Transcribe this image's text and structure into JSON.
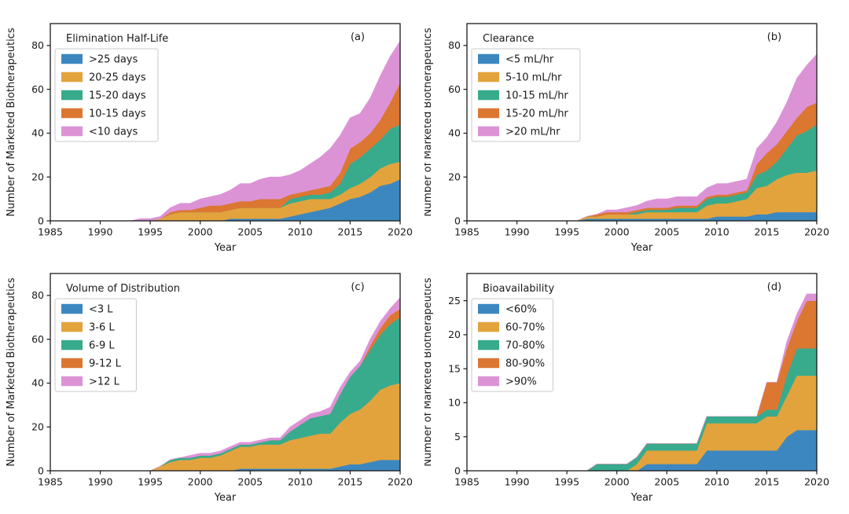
{
  "figure": {
    "background": "#ffffff",
    "text_color": "#1a1a1a",
    "spine_color": "#1a1a1a",
    "legend_border_color": "#c9c9c9",
    "legend_background": "#ffffff"
  },
  "chart_data": [
    {
      "type": "area",
      "stacked": true,
      "panel_label": "(a)",
      "legend_title": "Elimination Half-Life",
      "legend_position": "upper-left",
      "xlabel": "Year",
      "ylabel": "Number of Marketed Biotherapeutics",
      "xlim": [
        1985,
        2020
      ],
      "ylim": [
        0,
        90
      ],
      "x_ticks": [
        1985,
        1990,
        1995,
        2000,
        2005,
        2010,
        2015,
        2020
      ],
      "y_ticks": [
        0,
        20,
        40,
        60,
        80
      ],
      "grid": false,
      "years": [
        1985,
        1986,
        1987,
        1988,
        1989,
        1990,
        1991,
        1992,
        1993,
        1994,
        1995,
        1996,
        1997,
        1998,
        1999,
        2000,
        2001,
        2002,
        2003,
        2004,
        2005,
        2006,
        2007,
        2008,
        2009,
        2010,
        2011,
        2012,
        2013,
        2014,
        2015,
        2016,
        2017,
        2018,
        2019,
        2020
      ],
      "series": [
        {
          "name": ">25 days",
          "color": "#3c87c0",
          "values": [
            0,
            0,
            0,
            0,
            0,
            0,
            0,
            0,
            0,
            0,
            0,
            0,
            0,
            0,
            0,
            0,
            0,
            0,
            1,
            1,
            1,
            1,
            1,
            1,
            2,
            3,
            4,
            5,
            6,
            8,
            10,
            11,
            13,
            16,
            17,
            19
          ]
        },
        {
          "name": "20-25 days",
          "color": "#e2a33d",
          "values": [
            0,
            0,
            0,
            0,
            0,
            0,
            0,
            0,
            0,
            0,
            0,
            1,
            3,
            4,
            4,
            4,
            4,
            4,
            4,
            5,
            5,
            5,
            5,
            5,
            6,
            6,
            6,
            5,
            4,
            4,
            5,
            6,
            7,
            8,
            9,
            8
          ]
        },
        {
          "name": "15-20 days",
          "color": "#38ab8d",
          "values": [
            0,
            0,
            0,
            0,
            0,
            0,
            0,
            0,
            0,
            0,
            0,
            0,
            0,
            0,
            0,
            0,
            0,
            0,
            0,
            0,
            0,
            0,
            0,
            0,
            2,
            2,
            2,
            2,
            3,
            5,
            11,
            12,
            13,
            13,
            16,
            17
          ]
        },
        {
          "name": "10-15 days",
          "color": "#dc7732",
          "values": [
            0,
            0,
            0,
            0,
            0,
            0,
            0,
            0,
            0,
            0,
            0,
            0,
            1,
            1,
            1,
            2,
            3,
            3,
            3,
            3,
            3,
            4,
            4,
            4,
            2,
            2,
            2,
            3,
            3,
            5,
            7,
            7,
            7,
            9,
            12,
            19
          ]
        },
        {
          "name": "<10 days",
          "color": "#dc93d6",
          "values": [
            0,
            0,
            0,
            0,
            0,
            0,
            0,
            0,
            0,
            1,
            1,
            1,
            2,
            3,
            3,
            4,
            4,
            5,
            6,
            8,
            8,
            9,
            10,
            10,
            9,
            10,
            12,
            14,
            17,
            17,
            14,
            13,
            16,
            20,
            21,
            19
          ]
        }
      ]
    },
    {
      "type": "area",
      "stacked": true,
      "panel_label": "(b)",
      "legend_title": "Clearance",
      "legend_position": "upper-left",
      "xlabel": "Year",
      "ylabel": "Number of Marketed Biotherapeutics",
      "xlim": [
        1985,
        2020
      ],
      "ylim": [
        0,
        90
      ],
      "x_ticks": [
        1985,
        1990,
        1995,
        2000,
        2005,
        2010,
        2015,
        2020
      ],
      "y_ticks": [
        0,
        20,
        40,
        60,
        80
      ],
      "grid": false,
      "years": [
        1985,
        1986,
        1987,
        1988,
        1989,
        1990,
        1991,
        1992,
        1993,
        1994,
        1995,
        1996,
        1997,
        1998,
        1999,
        2000,
        2001,
        2002,
        2003,
        2004,
        2005,
        2006,
        2007,
        2008,
        2009,
        2010,
        2011,
        2012,
        2013,
        2014,
        2015,
        2016,
        2017,
        2018,
        2019,
        2020
      ],
      "series": [
        {
          "name": "<5 mL/hr",
          "color": "#3c87c0",
          "values": [
            0,
            0,
            0,
            0,
            0,
            0,
            0,
            0,
            0,
            0,
            0,
            0,
            1,
            1,
            1,
            1,
            1,
            1,
            1,
            1,
            1,
            1,
            1,
            1,
            1,
            2,
            2,
            2,
            2,
            3,
            3,
            4,
            4,
            4,
            4,
            4
          ]
        },
        {
          "name": "5-10 mL/hr",
          "color": "#e2a33d",
          "values": [
            0,
            0,
            0,
            0,
            0,
            0,
            0,
            0,
            0,
            0,
            0,
            0,
            1,
            1,
            2,
            2,
            2,
            2,
            3,
            3,
            3,
            3,
            3,
            3,
            6,
            6,
            6,
            7,
            8,
            12,
            13,
            15,
            17,
            18,
            18,
            19
          ]
        },
        {
          "name": "10-15 mL/hr",
          "color": "#38ab8d",
          "values": [
            0,
            0,
            0,
            0,
            0,
            0,
            0,
            0,
            0,
            0,
            0,
            0,
            0,
            0,
            0,
            0,
            0,
            1,
            1,
            1,
            1,
            2,
            2,
            2,
            3,
            3,
            3,
            3,
            3,
            6,
            7,
            8,
            12,
            17,
            19,
            21
          ]
        },
        {
          "name": "15-20 mL/hr",
          "color": "#dc7732",
          "values": [
            0,
            0,
            0,
            0,
            0,
            0,
            0,
            0,
            0,
            0,
            0,
            0,
            0,
            1,
            1,
            1,
            1,
            1,
            1,
            1,
            1,
            1,
            1,
            1,
            1,
            1,
            1,
            1,
            1,
            5,
            8,
            8,
            8,
            8,
            11,
            10
          ]
        },
        {
          "name": ">20 mL/hr",
          "color": "#dc93d6",
          "values": [
            0,
            0,
            0,
            0,
            0,
            0,
            0,
            0,
            0,
            0,
            0,
            0,
            0,
            0,
            1,
            1,
            2,
            2,
            3,
            4,
            4,
            4,
            4,
            4,
            4,
            5,
            5,
            5,
            5,
            7,
            7,
            10,
            13,
            18,
            19,
            22
          ]
        }
      ]
    },
    {
      "type": "area",
      "stacked": true,
      "panel_label": "(c)",
      "legend_title": "Volume of Distribution",
      "legend_position": "upper-left",
      "xlabel": "Year",
      "ylabel": "Number of Marketed Biotherapeutics",
      "xlim": [
        1985,
        2020
      ],
      "ylim": [
        0,
        90
      ],
      "x_ticks": [
        1985,
        1990,
        1995,
        2000,
        2005,
        2010,
        2015,
        2020
      ],
      "y_ticks": [
        0,
        20,
        40,
        60,
        80
      ],
      "grid": false,
      "years": [
        1985,
        1986,
        1987,
        1988,
        1989,
        1990,
        1991,
        1992,
        1993,
        1994,
        1995,
        1996,
        1997,
        1998,
        1999,
        2000,
        2001,
        2002,
        2003,
        2004,
        2005,
        2006,
        2007,
        2008,
        2009,
        2010,
        2011,
        2012,
        2013,
        2014,
        2015,
        2016,
        2017,
        2018,
        2019,
        2020
      ],
      "series": [
        {
          "name": "<3 L",
          "color": "#3c87c0",
          "values": [
            0,
            0,
            0,
            0,
            0,
            0,
            0,
            0,
            0,
            0,
            0,
            0,
            0,
            0,
            0,
            0,
            0,
            0,
            0,
            1,
            1,
            1,
            1,
            1,
            1,
            1,
            1,
            1,
            1,
            2,
            3,
            3,
            4,
            5,
            5,
            5
          ]
        },
        {
          "name": "3-6 L",
          "color": "#e2a33d",
          "values": [
            0,
            0,
            0,
            0,
            0,
            0,
            0,
            0,
            0,
            0,
            0,
            2,
            4,
            5,
            5,
            6,
            6,
            7,
            9,
            10,
            10,
            11,
            11,
            11,
            13,
            14,
            15,
            16,
            16,
            20,
            23,
            25,
            28,
            32,
            34,
            35
          ]
        },
        {
          "name": "6-9 L",
          "color": "#38ab8d",
          "values": [
            0,
            0,
            0,
            0,
            0,
            0,
            0,
            0,
            0,
            0,
            0,
            0,
            1,
            1,
            1,
            1,
            1,
            1,
            1,
            1,
            1,
            1,
            2,
            2,
            4,
            6,
            8,
            8,
            9,
            13,
            17,
            20,
            23,
            25,
            28,
            30
          ]
        },
        {
          "name": "9-12 L",
          "color": "#dc7732",
          "values": [
            0,
            0,
            0,
            0,
            0,
            0,
            0,
            0,
            0,
            0,
            0,
            0,
            0,
            0,
            0,
            0,
            0,
            0,
            0,
            0,
            0,
            0,
            0,
            0,
            0,
            0,
            0,
            0,
            0,
            0,
            0,
            0,
            2,
            3,
            4,
            4
          ]
        },
        {
          "name": ">12 L",
          "color": "#dc93d6",
          "values": [
            0,
            0,
            0,
            0,
            0,
            0,
            0,
            0,
            0,
            0,
            0,
            0,
            0,
            0,
            1,
            1,
            1,
            1,
            1,
            1,
            1,
            1,
            1,
            1,
            2,
            2,
            2,
            2,
            3,
            3,
            2,
            2,
            3,
            3,
            3,
            5
          ]
        }
      ]
    },
    {
      "type": "area",
      "stacked": true,
      "panel_label": "(d)",
      "legend_title": "Bioavailability",
      "legend_position": "upper-left",
      "xlabel": "Year",
      "ylabel": "Number of Marketed Biotherapeutics",
      "xlim": [
        1985,
        2020
      ],
      "ylim": [
        0,
        29
      ],
      "x_ticks": [
        1985,
        1990,
        1995,
        2000,
        2005,
        2010,
        2015,
        2020
      ],
      "y_ticks": [
        0,
        5,
        10,
        15,
        20,
        25
      ],
      "grid": false,
      "years": [
        1985,
        1986,
        1987,
        1988,
        1989,
        1990,
        1991,
        1992,
        1993,
        1994,
        1995,
        1996,
        1997,
        1998,
        1999,
        2000,
        2001,
        2002,
        2003,
        2004,
        2005,
        2006,
        2007,
        2008,
        2009,
        2010,
        2011,
        2012,
        2013,
        2014,
        2015,
        2016,
        2017,
        2018,
        2019,
        2020
      ],
      "series": [
        {
          "name": "<60%",
          "color": "#3c87c0",
          "values": [
            0,
            0,
            0,
            0,
            0,
            0,
            0,
            0,
            0,
            0,
            0,
            0,
            0,
            0,
            0,
            0,
            0,
            0,
            1,
            1,
            1,
            1,
            1,
            1,
            3,
            3,
            3,
            3,
            3,
            3,
            3,
            3,
            5,
            6,
            6,
            6
          ]
        },
        {
          "name": "60-70%",
          "color": "#e2a33d",
          "values": [
            0,
            0,
            0,
            0,
            0,
            0,
            0,
            0,
            0,
            0,
            0,
            0,
            0,
            0,
            0,
            0,
            0,
            1,
            2,
            2,
            2,
            2,
            2,
            2,
            4,
            4,
            4,
            4,
            4,
            4,
            5,
            5,
            6,
            8,
            8,
            8
          ]
        },
        {
          "name": "70-80%",
          "color": "#38ab8d",
          "values": [
            0,
            0,
            0,
            0,
            0,
            0,
            0,
            0,
            0,
            0,
            0,
            0,
            0,
            1,
            1,
            1,
            1,
            1,
            1,
            1,
            1,
            1,
            1,
            1,
            1,
            1,
            1,
            1,
            1,
            1,
            1,
            1,
            3,
            4,
            4,
            4
          ]
        },
        {
          "name": "80-90%",
          "color": "#dc7732",
          "values": [
            0,
            0,
            0,
            0,
            0,
            0,
            0,
            0,
            0,
            0,
            0,
            0,
            0,
            0,
            0,
            0,
            0,
            0,
            0,
            0,
            0,
            0,
            0,
            0,
            0,
            0,
            0,
            0,
            0,
            0,
            4,
            4,
            4,
            4,
            7,
            7
          ]
        },
        {
          "name": ">90%",
          "color": "#dc93d6",
          "values": [
            0,
            0,
            0,
            0,
            0,
            0,
            0,
            0,
            0,
            0,
            0,
            0,
            0,
            0,
            0,
            0,
            0,
            0,
            0,
            0,
            0,
            0,
            0,
            0,
            0,
            0,
            0,
            0,
            0,
            0,
            0,
            0,
            1,
            1,
            1,
            1
          ]
        }
      ]
    }
  ]
}
